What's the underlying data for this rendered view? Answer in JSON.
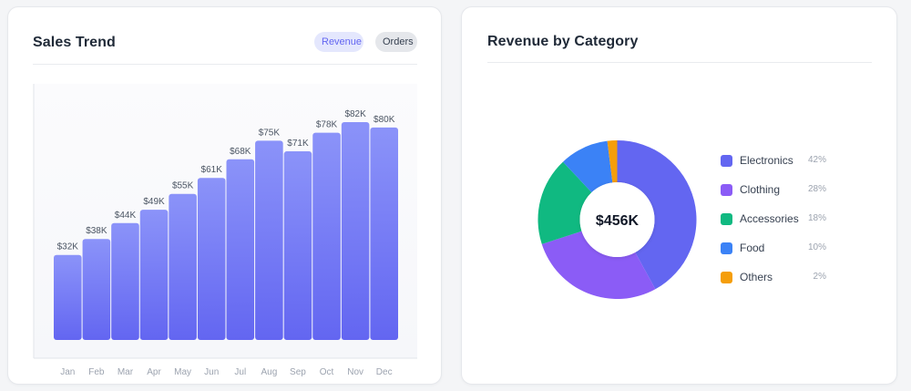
{
  "colors": {
    "primary": "#6366f1",
    "primary_light": "#8b93f9",
    "electronics": "#6366f1",
    "clothing": "#8b5cf6",
    "accessories": "#10b981",
    "food": "#3b82f6",
    "others": "#f59e0b"
  },
  "sales_trend": {
    "title": "Sales Trend",
    "toggle": {
      "revenue_label": "Revenue",
      "orders_label": "Orders",
      "active": "Revenue"
    }
  },
  "revenue_by_category": {
    "title": "Revenue by Category",
    "center_label": "$456K"
  },
  "chart_data": [
    {
      "type": "bar",
      "title": "Sales Trend",
      "categories": [
        "Jan",
        "Feb",
        "Mar",
        "Apr",
        "May",
        "Jun",
        "Jul",
        "Aug",
        "Sep",
        "Oct",
        "Nov",
        "Dec"
      ],
      "values": [
        32,
        38,
        44,
        49,
        55,
        61,
        68,
        75,
        71,
        78,
        82,
        80
      ],
      "data_labels": [
        "$32K",
        "$38K",
        "$44K",
        "$49K",
        "$55K",
        "$61K",
        "$68K",
        "$75K",
        "$71K",
        "$78K",
        "$82K",
        "$80K"
      ],
      "ylim": [
        0,
        100
      ],
      "grid": false
    },
    {
      "type": "pie",
      "title": "Revenue by Category",
      "categories": [
        "Electronics",
        "Clothing",
        "Accessories",
        "Food",
        "Others"
      ],
      "values": [
        42,
        28,
        18,
        10,
        2
      ],
      "value_labels": [
        "42%",
        "28%",
        "18%",
        "10%",
        "2%"
      ],
      "center_text": "$456K",
      "legend": "right"
    }
  ]
}
